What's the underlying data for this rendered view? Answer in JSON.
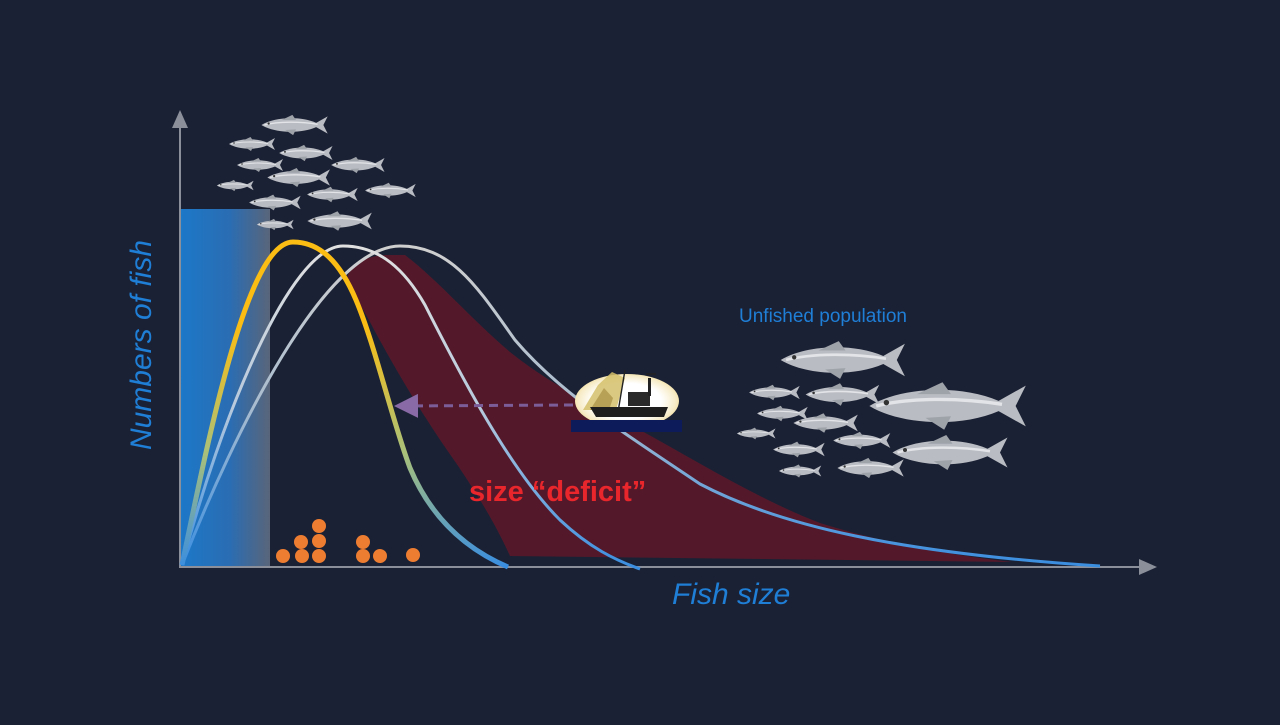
{
  "labels": {
    "y_axis": "Numbers of fish",
    "x_axis": "Fish size",
    "unfished": "Unfished population",
    "deficit": "size “deficit”"
  },
  "colors": {
    "background": "#1b2134",
    "axis": "#8a8f9a",
    "label_blue": "#1f7ed6",
    "deficit_text": "#e8262b",
    "deficit_fill": "#56192a",
    "fished_curve": "#fbbd13",
    "mid_curve": "#d8d8d8",
    "unfished_curve": "#c8c8c8",
    "bar": "#1c78c8",
    "eggs": "#ed7d31",
    "fish": "#b9bcc2"
  },
  "icons": {
    "small_school": "fish-school-icon",
    "large_school": "tuna-school-icon",
    "boat": "fishing-boat-icon",
    "eggs": "egg-cluster-icon"
  }
}
